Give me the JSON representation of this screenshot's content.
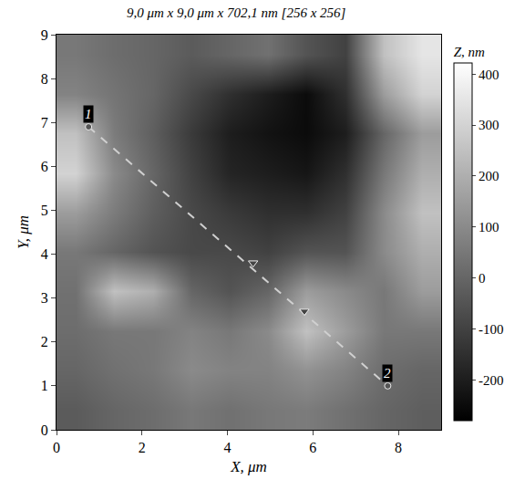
{
  "chart_data": {
    "type": "heatmap",
    "title": "9,0 μm x 9,0 μm x 702,1 nm [256 x 256]",
    "x_label": "X, μm",
    "y_label": "Y, μm",
    "x": [
      0.45,
      1.35,
      2.25,
      3.15,
      4.05,
      4.95,
      5.85,
      6.75,
      7.65,
      8.55
    ],
    "y": [
      0.45,
      1.35,
      2.25,
      3.15,
      4.05,
      4.95,
      5.85,
      6.75,
      7.65,
      8.55
    ],
    "z": [
      [
        -30,
        0,
        20,
        50,
        30,
        50,
        60,
        30,
        0,
        -20
      ],
      [
        0,
        30,
        50,
        100,
        80,
        80,
        120,
        80,
        20,
        0
      ],
      [
        20,
        50,
        50,
        80,
        50,
        100,
        250,
        150,
        50,
        50
      ],
      [
        30,
        250,
        200,
        0,
        -50,
        0,
        150,
        100,
        50,
        150
      ],
      [
        50,
        0,
        -50,
        -80,
        -80,
        -100,
        -50,
        -50,
        100,
        200
      ],
      [
        150,
        60,
        -20,
        -80,
        -120,
        -150,
        -150,
        -100,
        100,
        250
      ],
      [
        300,
        100,
        0,
        -100,
        -180,
        -200,
        -220,
        -150,
        50,
        200
      ],
      [
        250,
        60,
        -20,
        -120,
        -200,
        -230,
        -250,
        -200,
        0,
        150
      ],
      [
        80,
        40,
        0,
        -80,
        -150,
        -200,
        -250,
        -150,
        150,
        300
      ],
      [
        50,
        20,
        0,
        -30,
        0,
        30,
        -50,
        -100,
        250,
        350
      ]
    ],
    "xlim": [
      0,
      9
    ],
    "ylim": [
      0,
      9
    ],
    "xticks": [
      0,
      2,
      4,
      6,
      8
    ],
    "yticks": [
      0,
      1,
      2,
      3,
      4,
      5,
      6,
      7,
      8,
      9
    ],
    "colorbar_title": "Z, nm",
    "colorbar_range": [
      -280,
      422
    ],
    "colorbar_ticks": [
      -200,
      -100,
      0,
      100,
      200,
      300,
      400
    ],
    "colors": [
      "#000000",
      "#ffffff"
    ],
    "profile": {
      "line_style": "dash",
      "marker": "triangle-down",
      "ends": [
        {
          "x": 0.75,
          "y": 6.9,
          "label": "1"
        },
        {
          "x": 7.75,
          "y": 1.0,
          "label": "2"
        }
      ],
      "markers": [
        {
          "x": 4.6,
          "y": 3.8
        },
        {
          "x": 5.8,
          "y": 2.7
        }
      ]
    }
  }
}
